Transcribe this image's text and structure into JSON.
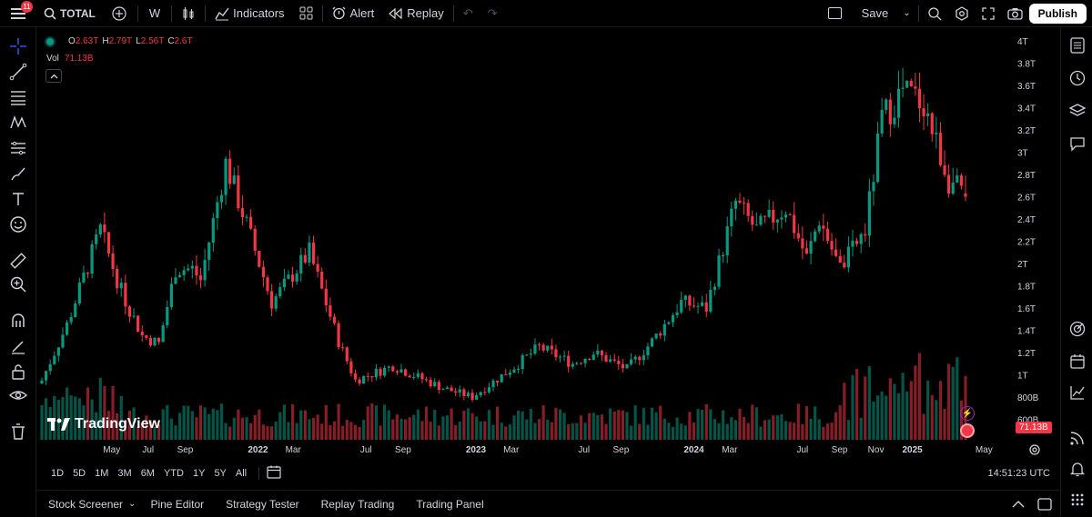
{
  "toolbar": {
    "alerts_count": "11",
    "symbol": "TOTAL",
    "interval": "W",
    "indicators_label": "Indicators",
    "alert_label": "Alert",
    "replay_label": "Replay",
    "save_label": "Save",
    "publish_label": "Publish"
  },
  "legend": {
    "o_key": "O",
    "o_val": "2.63T",
    "h_key": "H",
    "h_val": "2.79T",
    "l_key": "L",
    "l_val": "2.56T",
    "c_key": "C",
    "c_val": "2.6T",
    "vol_key": "Vol",
    "vol_val": "71.13B"
  },
  "logo_text": "TradingView",
  "volume_tag": "71.13B",
  "range_buttons": [
    "1D",
    "5D",
    "1M",
    "3M",
    "6M",
    "YTD",
    "1Y",
    "5Y",
    "All"
  ],
  "clock": "14:51:23 UTC",
  "bottom_tabs": [
    "Stock Screener",
    "Pine Editor",
    "Strategy Tester",
    "Replay Trading",
    "Trading Panel"
  ],
  "colors": {
    "up": "#089981",
    "down": "#f23645",
    "background": "#000000",
    "text": "#d1d4dc"
  },
  "chart_data": {
    "type": "candlestick",
    "interval": "weekly",
    "y_axis_labels": [
      "4T",
      "3.8T",
      "3.6T",
      "3.4T",
      "3.2T",
      "3T",
      "2.8T",
      "2.6T",
      "2.4T",
      "2.2T",
      "2T",
      "1.8T",
      "1.6T",
      "1.4T",
      "1.2T",
      "1T",
      "800B",
      "600B"
    ],
    "y_axis_values": [
      4.0,
      3.8,
      3.6,
      3.4,
      3.2,
      3.0,
      2.8,
      2.6,
      2.4,
      2.2,
      2.0,
      1.8,
      1.6,
      1.4,
      1.2,
      1.0,
      0.8,
      0.6
    ],
    "y_unit": "T",
    "x_axis_labels": [
      {
        "label": "May",
        "date": "2021-05-01"
      },
      {
        "label": "Jul",
        "date": "2021-07-01"
      },
      {
        "label": "Sep",
        "date": "2021-09-01"
      },
      {
        "label": "2022",
        "date": "2022-01-01",
        "bold": true
      },
      {
        "label": "Mar",
        "date": "2022-03-01"
      },
      {
        "label": "Jul",
        "date": "2022-07-01"
      },
      {
        "label": "Sep",
        "date": "2022-09-01"
      },
      {
        "label": "2023",
        "date": "2023-01-01",
        "bold": true
      },
      {
        "label": "Mar",
        "date": "2023-03-01"
      },
      {
        "label": "Jul",
        "date": "2023-07-01"
      },
      {
        "label": "Sep",
        "date": "2023-09-01"
      },
      {
        "label": "2024",
        "date": "2024-01-01",
        "bold": true
      },
      {
        "label": "Mar",
        "date": "2024-03-01"
      },
      {
        "label": "Jul",
        "date": "2024-07-01"
      },
      {
        "label": "Sep",
        "date": "2024-09-01"
      },
      {
        "label": "Nov",
        "date": "2024-11-01"
      },
      {
        "label": "2025",
        "date": "2025-01-01",
        "bold": true
      },
      {
        "label": "May",
        "date": "2025-05-01"
      }
    ],
    "close_path": [
      {
        "date": "2021-01-04",
        "close": 0.95
      },
      {
        "date": "2021-02-15",
        "close": 1.45
      },
      {
        "date": "2021-04-12",
        "close": 2.3
      },
      {
        "date": "2021-05-17",
        "close": 1.75
      },
      {
        "date": "2021-06-21",
        "close": 1.35
      },
      {
        "date": "2021-07-19",
        "close": 1.28
      },
      {
        "date": "2021-08-16",
        "close": 1.95
      },
      {
        "date": "2021-09-13",
        "close": 1.95
      },
      {
        "date": "2021-09-27",
        "close": 1.85
      },
      {
        "date": "2021-11-08",
        "close": 2.9
      },
      {
        "date": "2021-12-13",
        "close": 2.35
      },
      {
        "date": "2022-01-24",
        "close": 1.65
      },
      {
        "date": "2022-03-28",
        "close": 2.1
      },
      {
        "date": "2022-05-16",
        "close": 1.3
      },
      {
        "date": "2022-06-13",
        "close": 0.95
      },
      {
        "date": "2022-08-15",
        "close": 1.08
      },
      {
        "date": "2022-11-07",
        "close": 0.88
      },
      {
        "date": "2022-12-26",
        "close": 0.8
      },
      {
        "date": "2023-03-13",
        "close": 1.1
      },
      {
        "date": "2023-04-17",
        "close": 1.25
      },
      {
        "date": "2023-06-12",
        "close": 1.1
      },
      {
        "date": "2023-07-17",
        "close": 1.2
      },
      {
        "date": "2023-09-11",
        "close": 1.05
      },
      {
        "date": "2023-10-23",
        "close": 1.3
      },
      {
        "date": "2023-12-11",
        "close": 1.65
      },
      {
        "date": "2024-01-22",
        "close": 1.6
      },
      {
        "date": "2024-03-11",
        "close": 2.55
      },
      {
        "date": "2024-04-15",
        "close": 2.3
      },
      {
        "date": "2024-06-03",
        "close": 2.5
      },
      {
        "date": "2024-07-08",
        "close": 2.05
      },
      {
        "date": "2024-07-29",
        "close": 2.4
      },
      {
        "date": "2024-09-02",
        "close": 1.95
      },
      {
        "date": "2024-10-14",
        "close": 2.3
      },
      {
        "date": "2024-11-11",
        "close": 3.3
      },
      {
        "date": "2024-12-16",
        "close": 3.55
      },
      {
        "date": "2025-01-20",
        "close": 3.45
      },
      {
        "date": "2025-02-03",
        "close": 3.2
      },
      {
        "date": "2025-03-03",
        "close": 2.75
      },
      {
        "date": "2025-03-31",
        "close": 2.6
      }
    ],
    "volume_unit": "B",
    "last_volume": 71.13
  }
}
